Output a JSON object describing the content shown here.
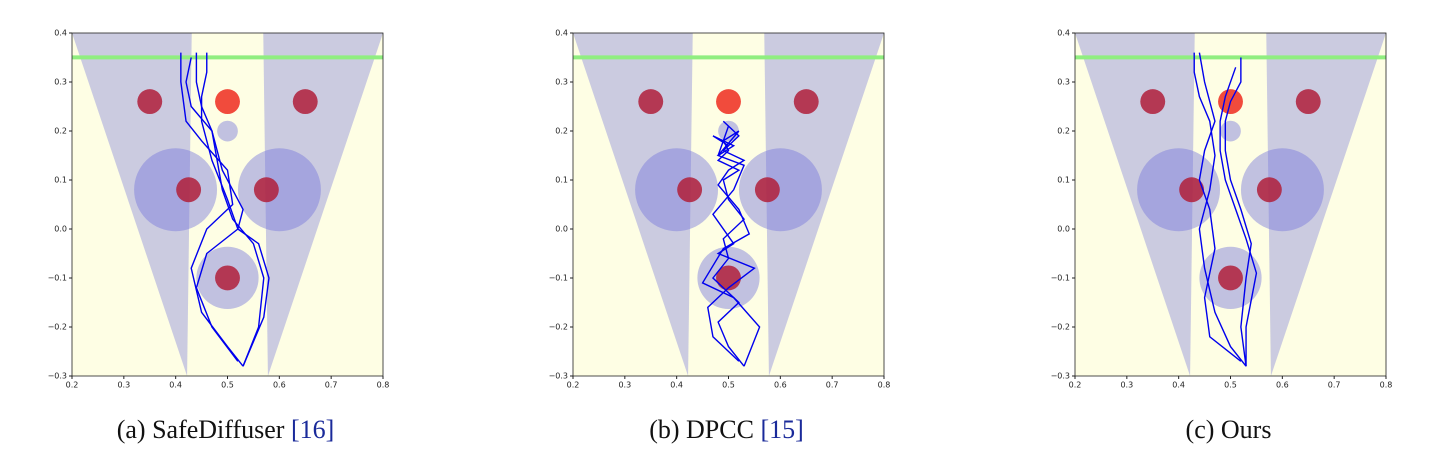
{
  "chart_data": [
    {
      "type": "line",
      "caption": "(a) SafeDiffuser",
      "ref": "[16]",
      "xlim": [
        0.2,
        0.8
      ],
      "ylim": [
        -0.3,
        0.4
      ],
      "xticks": [
        0.2,
        0.3,
        0.4,
        0.5,
        0.6,
        0.7,
        0.8
      ],
      "yticks": [
        {
          "value": -0.3,
          "label": "−0.3"
        },
        {
          "value": -0.2,
          "label": "−0.2"
        },
        {
          "value": -0.1,
          "label": "−0.1"
        },
        {
          "value": 0,
          "label": "0.0"
        },
        0.1,
        0.2,
        0.3,
        0.4
      ],
      "series": [
        {
          "color": "#0000ee",
          "x": [
            0.53,
            0.56,
            0.57,
            0.55,
            0.51,
            0.49,
            0.48,
            0.47,
            0.45,
            0.44,
            0.44
          ],
          "values": [
            -0.28,
            -0.2,
            -0.1,
            -0.03,
            0.02,
            0.08,
            0.14,
            0.2,
            0.25,
            0.3,
            0.36
          ]
        },
        {
          "color": "#0000ee",
          "x": [
            0.53,
            0.5,
            0.45,
            0.43,
            0.46,
            0.51,
            0.5,
            0.45,
            0.42,
            0.41,
            0.41
          ],
          "values": [
            -0.28,
            -0.24,
            -0.17,
            -0.08,
            0,
            0.05,
            0.12,
            0.18,
            0.22,
            0.3,
            0.36
          ]
        },
        {
          "color": "#0000ee",
          "x": [
            0.53,
            0.57,
            0.58,
            0.56,
            0.52,
            0.5,
            0.47,
            0.45,
            0.45,
            0.46,
            0.46
          ],
          "values": [
            -0.28,
            -0.18,
            -0.1,
            -0.03,
            0,
            0.06,
            0.14,
            0.22,
            0.27,
            0.32,
            0.36
          ]
        },
        {
          "color": "#0000ee",
          "x": [
            0.52,
            0.47,
            0.44,
            0.46,
            0.52,
            0.53,
            0.49,
            0.47,
            0.43,
            0.42,
            0.43
          ],
          "values": [
            -0.27,
            -0.2,
            -0.12,
            -0.05,
            0,
            0.04,
            0.12,
            0.2,
            0.25,
            0.3,
            0.35
          ]
        }
      ]
    },
    {
      "type": "line",
      "caption": "(b) DPCC",
      "ref": "[15]",
      "xlim": [
        0.2,
        0.8
      ],
      "ylim": [
        -0.3,
        0.4
      ],
      "xticks": [
        0.2,
        0.3,
        0.4,
        0.5,
        0.6,
        0.7,
        0.8
      ],
      "yticks": [
        {
          "value": -0.3,
          "label": "−0.3"
        },
        {
          "value": -0.2,
          "label": "−0.2"
        },
        {
          "value": -0.1,
          "label": "−0.1"
        },
        {
          "value": 0,
          "label": "0.0"
        },
        0.1,
        0.2,
        0.3,
        0.4
      ],
      "series": [
        {
          "color": "#0000ee",
          "x": [
            0.53,
            0.5,
            0.48,
            0.52,
            0.47,
            0.5,
            0.49,
            0.53,
            0.5,
            0.49,
            0.52,
            0.48,
            0.5,
            0.49,
            0.52,
            0.48,
            0.5
          ],
          "values": [
            -0.28,
            -0.24,
            -0.19,
            -0.15,
            -0.1,
            -0.06,
            -0.02,
            0.02,
            0.06,
            0.1,
            0.12,
            0.14,
            0.16,
            0.18,
            0.2,
            0.15,
            0.21
          ]
        },
        {
          "color": "#0000ee",
          "x": [
            0.52,
            0.47,
            0.46,
            0.5,
            0.55,
            0.48,
            0.51,
            0.47,
            0.51,
            0.53,
            0.48,
            0.51,
            0.47,
            0.5
          ],
          "values": [
            -0.27,
            -0.22,
            -0.16,
            -0.12,
            -0.08,
            -0.05,
            -0.03,
            0.03,
            0.08,
            0.13,
            0.15,
            0.17,
            0.19,
            0.17
          ]
        },
        {
          "color": "#0000ee",
          "x": [
            0.53,
            0.56,
            0.51,
            0.45,
            0.49,
            0.54,
            0.52,
            0.48,
            0.5,
            0.53,
            0.49,
            0.52,
            0.49
          ],
          "values": [
            -0.28,
            -0.2,
            -0.14,
            -0.11,
            -0.04,
            -0.01,
            0.04,
            0.09,
            0.12,
            0.14,
            0.16,
            0.19,
            0.22
          ]
        }
      ]
    },
    {
      "type": "line",
      "caption": "(c) Ours",
      "xlim": [
        0.2,
        0.8
      ],
      "ylim": [
        -0.3,
        0.4
      ],
      "xticks": [
        0.2,
        0.3,
        0.4,
        0.5,
        0.6,
        0.7,
        0.8
      ],
      "yticks": [
        {
          "value": -0.3,
          "label": "−0.3"
        },
        {
          "value": -0.2,
          "label": "−0.2"
        },
        {
          "value": -0.1,
          "label": "−0.1"
        },
        {
          "value": 0,
          "label": "0.0"
        },
        0.1,
        0.2,
        0.3,
        0.4
      ],
      "series": [
        {
          "color": "#0000ee",
          "x": [
            0.53,
            0.5,
            0.47,
            0.45,
            0.44,
            0.46,
            0.47,
            0.46,
            0.44,
            0.43,
            0.43
          ],
          "values": [
            -0.28,
            -0.24,
            -0.17,
            -0.08,
            0,
            0.08,
            0.15,
            0.22,
            0.27,
            0.32,
            0.36
          ]
        },
        {
          "color": "#0000ee",
          "x": [
            0.53,
            0.52,
            0.53,
            0.54,
            0.52,
            0.5,
            0.49,
            0.49,
            0.5,
            0.52,
            0.52
          ],
          "values": [
            -0.28,
            -0.2,
            -0.1,
            -0.03,
            0.04,
            0.1,
            0.16,
            0.22,
            0.26,
            0.3,
            0.35
          ]
        },
        {
          "color": "#0000ee",
          "x": [
            0.52,
            0.46,
            0.45,
            0.47,
            0.46,
            0.44,
            0.45,
            0.47,
            0.45,
            0.44
          ],
          "values": [
            -0.27,
            -0.22,
            -0.14,
            -0.04,
            0.04,
            0.1,
            0.16,
            0.22,
            0.3,
            0.36
          ]
        },
        {
          "color": "#0000ee",
          "x": [
            0.53,
            0.53,
            0.55,
            0.53,
            0.51,
            0.49,
            0.48,
            0.48,
            0.49,
            0.51
          ],
          "values": [
            -0.28,
            -0.2,
            -0.09,
            -0.02,
            0.04,
            0.1,
            0.16,
            0.22,
            0.27,
            0.33
          ]
        }
      ]
    }
  ]
}
